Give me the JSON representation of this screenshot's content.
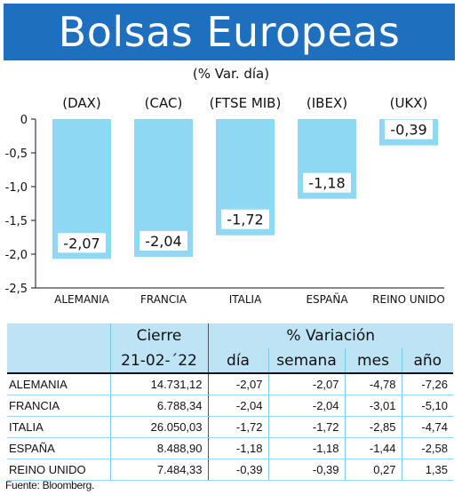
{
  "header": {
    "title": "Bolsas Europeas",
    "subtitle": "(% Var. día)"
  },
  "chart_data": {
    "type": "bar",
    "categories": [
      "ALEMANIA",
      "FRANCIA",
      "ITALIA",
      "ESPAÑA",
      "REINO UNIDO"
    ],
    "index_labels": [
      "(DAX)",
      "(CAC)",
      "(FTSE MIB)",
      "(IBEX)",
      "(UKX)"
    ],
    "values": [
      -2.07,
      -2.04,
      -1.72,
      -1.18,
      -0.39
    ],
    "value_labels": [
      "-2,07",
      "-2,04",
      "-1,72",
      "-1,18",
      "-0,39"
    ],
    "ylim": [
      -2.5,
      0
    ],
    "yticks": [
      0,
      -0.5,
      -1.0,
      -1.5,
      -2.0,
      -2.5
    ],
    "ytick_labels": [
      "0",
      "-0,5",
      "-1,0",
      "-1,5",
      "-2,0",
      "-2,5"
    ],
    "bar_color": "#8fd8f3",
    "grid": false
  },
  "table": {
    "header_cierre": "Cierre",
    "header_variacion": "% Variación",
    "date": "21-02-´22",
    "columns": [
      "día",
      "semana",
      "mes",
      "año"
    ],
    "rows": [
      {
        "name": "ALEMANIA",
        "cierre": "14.731,12",
        "dia": "-2,07",
        "semana": "-2,07",
        "mes": "-4,78",
        "ano": "-7,26"
      },
      {
        "name": "FRANCIA",
        "cierre": "6.788,34",
        "dia": "-2,04",
        "semana": "-2,04",
        "mes": "-3,01",
        "ano": "-5,10"
      },
      {
        "name": "ITALIA",
        "cierre": "26.050,03",
        "dia": "-1,72",
        "semana": "-1,72",
        "mes": "-2,85",
        "ano": "-4,74"
      },
      {
        "name": "ESPAÑA",
        "cierre": "8.488,90",
        "dia": "-1,18",
        "semana": "-1,18",
        "mes": "-1,44",
        "ano": "-2,58"
      },
      {
        "name": "REINO UNIDO",
        "cierre": "7.484,33",
        "dia": "-0,39",
        "semana": "-0,39",
        "mes": "0,27",
        "ano": "1,35"
      }
    ]
  },
  "source": "Fuente: Bloomberg.",
  "colors": {
    "banner": "#1f6fbf",
    "table_header": "#bde3f5",
    "bar": "#8fd8f3"
  }
}
